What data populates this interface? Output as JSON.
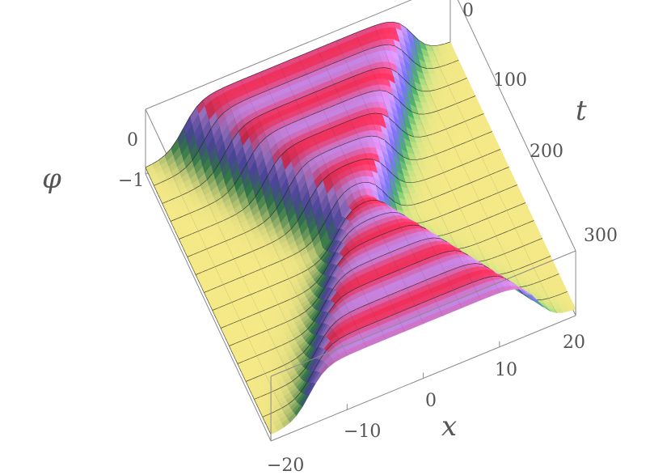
{
  "chart_data": {
    "type": "surface",
    "xlabel": "x",
    "ylabel": "t",
    "zlabel": "φ",
    "xlim": [
      -20,
      20
    ],
    "ylim": [
      0,
      300
    ],
    "zlim": [
      -1.15,
      0.45
    ],
    "x_ticks": [
      "−20",
      "−10",
      "0",
      "10",
      "20"
    ],
    "y_ticks": [
      "0",
      "100",
      "200",
      "300"
    ],
    "z_ticks": [
      "0",
      "−1"
    ],
    "background_level": -1,
    "ridge_level": 0.2,
    "colors": {
      "low": "#f4e887",
      "mid": "#3f9a5c",
      "blue": "#6b63e0",
      "purple": "#c18ef0",
      "high": "#f0305a",
      "mesh": "#222222",
      "box": "#8a8a8a"
    }
  }
}
